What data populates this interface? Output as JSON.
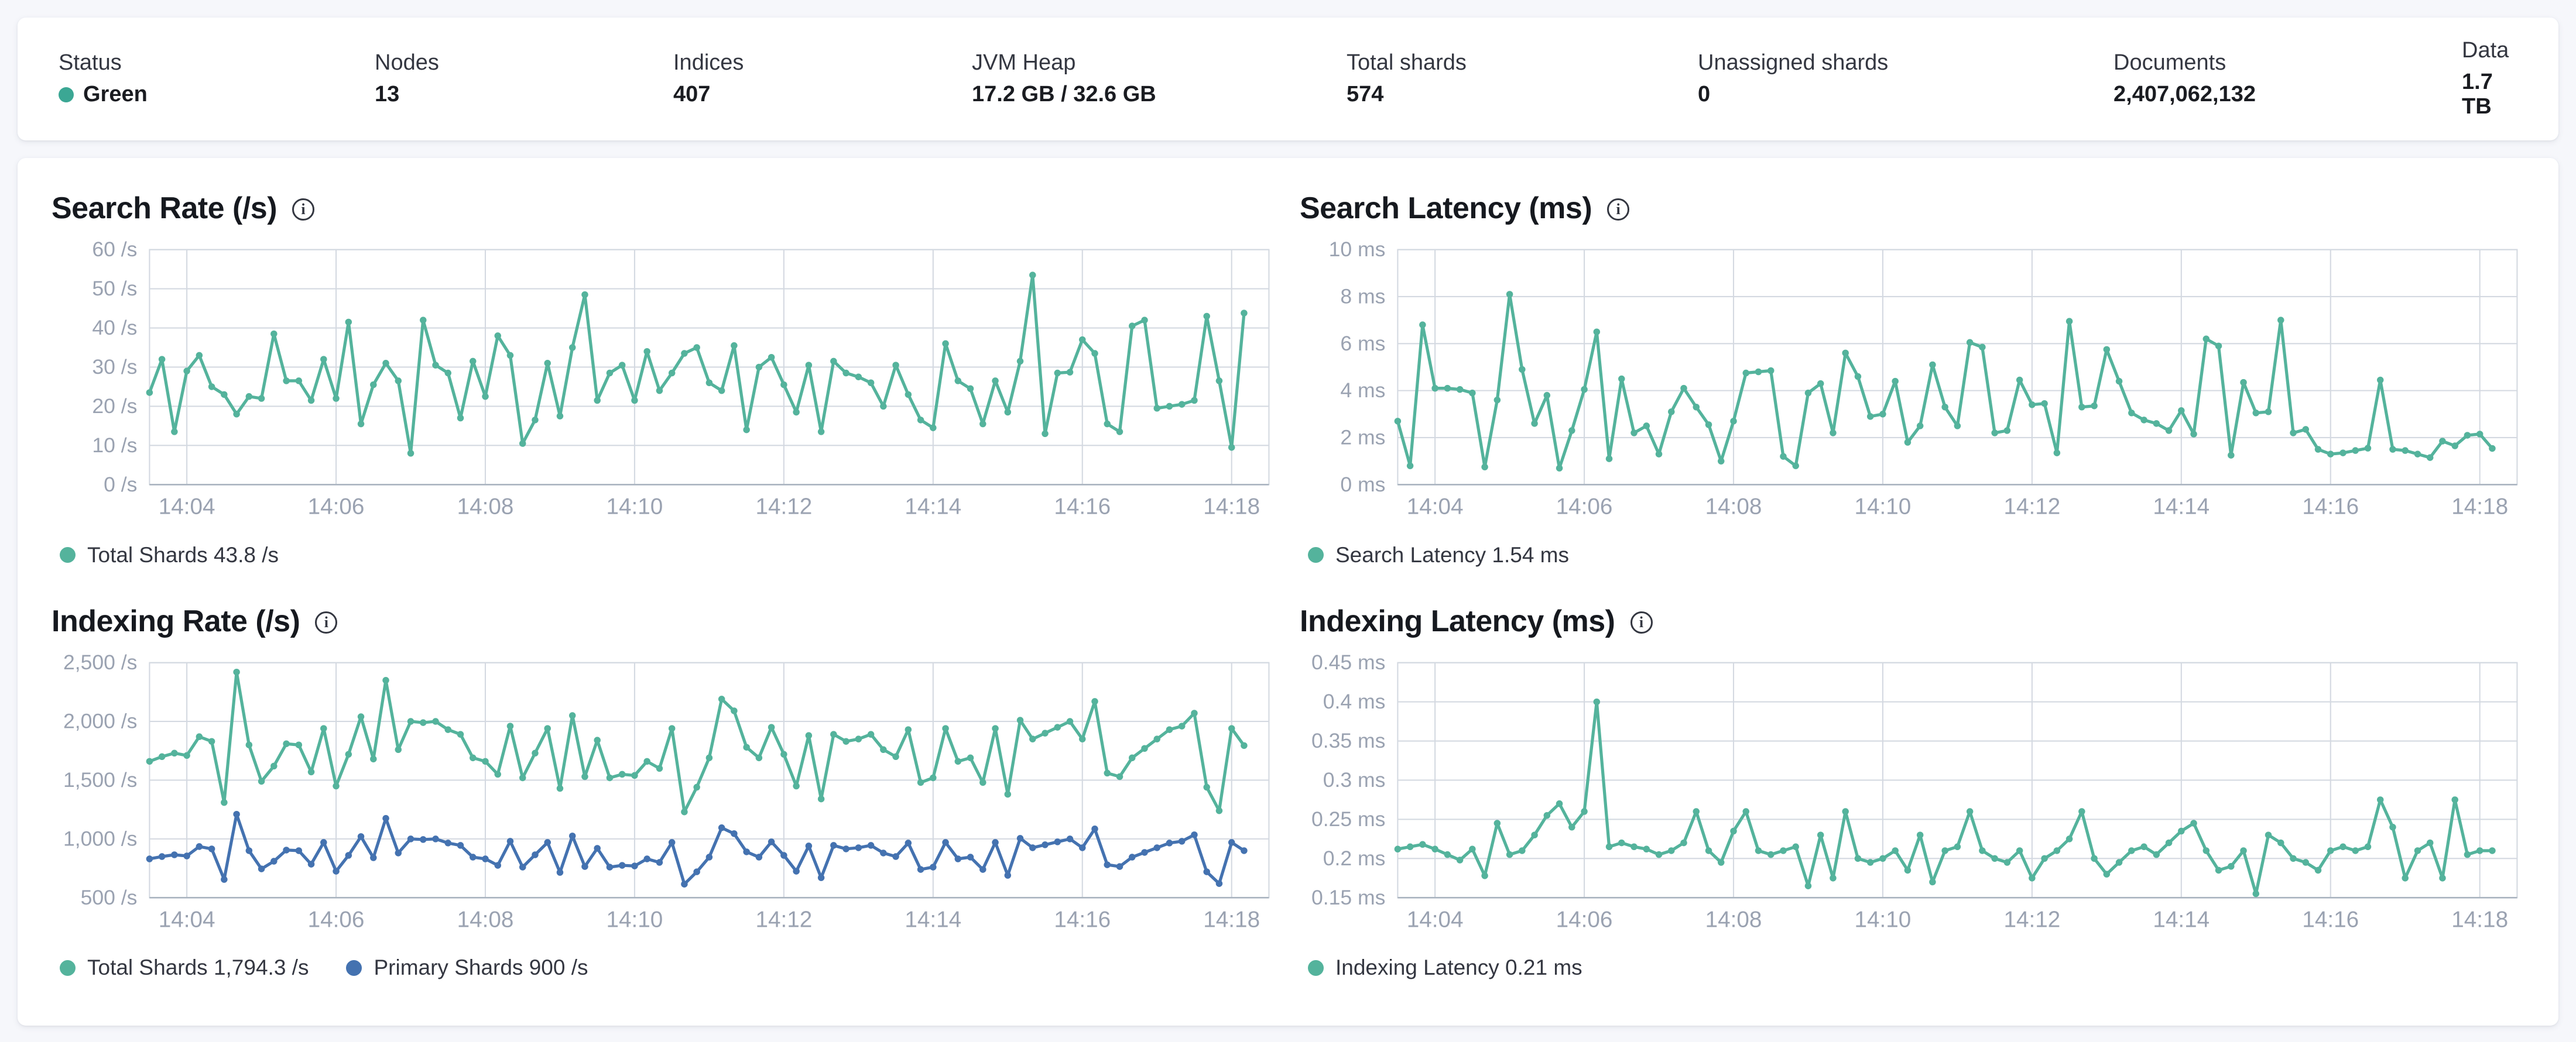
{
  "colors": {
    "teal": "#54b39c",
    "blue": "#4472b0",
    "status_green": "#3ba794",
    "grid": "#d4d9e1",
    "axis": "#aab4c0",
    "tick_text": "#9aa2b1"
  },
  "header": {
    "stats": [
      {
        "label": "Status",
        "value": "Green",
        "has_dot": true
      },
      {
        "label": "Nodes",
        "value": "13"
      },
      {
        "label": "Indices",
        "value": "407"
      },
      {
        "label": "JVM Heap",
        "value": "17.2 GB / 32.6 GB"
      },
      {
        "label": "Total shards",
        "value": "574"
      },
      {
        "label": "Unassigned shards",
        "value": "0"
      },
      {
        "label": "Documents",
        "value": "2,407,062,132"
      },
      {
        "label": "Data",
        "value": "1.7 TB"
      }
    ]
  },
  "info_icon_glyph": "i",
  "chart_data": [
    {
      "id": "search-rate",
      "type": "line",
      "title": "Search Rate (/s)",
      "x_start": "14:03:30",
      "interval_s": 10,
      "x_domain_s": 900,
      "xticks": [
        {
          "label": "14:04",
          "t": 30
        },
        {
          "label": "14:06",
          "t": 150
        },
        {
          "label": "14:08",
          "t": 270
        },
        {
          "label": "14:10",
          "t": 390
        },
        {
          "label": "14:12",
          "t": 510
        },
        {
          "label": "14:14",
          "t": 630
        },
        {
          "label": "14:16",
          "t": 750
        },
        {
          "label": "14:18",
          "t": 870
        }
      ],
      "ylim": [
        0,
        60
      ],
      "yticks": [
        {
          "v": 60,
          "label": "60 /s"
        },
        {
          "v": 50,
          "label": "50 /s"
        },
        {
          "v": 40,
          "label": "40 /s"
        },
        {
          "v": 30,
          "label": "30 /s"
        },
        {
          "v": 20,
          "label": "20 /s"
        },
        {
          "v": 10,
          "label": "10 /s"
        },
        {
          "v": 0,
          "label": "0 /s"
        }
      ],
      "series": [
        {
          "name": "Total Shards",
          "color": "#54b39c",
          "values": [
            23.5,
            32,
            13.5,
            29,
            33,
            25,
            23,
            18,
            22.5,
            22,
            38.5,
            26.5,
            26.5,
            21.5,
            32,
            22,
            41.5,
            15.5,
            25.5,
            31,
            26.5,
            8,
            42,
            30.5,
            28.5,
            17,
            31.5,
            22.5,
            38,
            33,
            10.5,
            16.5,
            31,
            17.5,
            35,
            48.5,
            21.5,
            28.5,
            30.5,
            21.5,
            34,
            24,
            28.5,
            33.5,
            35,
            26,
            24,
            35.5,
            14,
            30,
            32.5,
            25.5,
            18.5,
            30.5,
            13.5,
            31.5,
            28.5,
            27.5,
            26,
            20,
            30.5,
            23,
            16.5,
            14.5,
            36,
            26.5,
            24.5,
            15.5,
            26.5,
            18.5,
            31.5,
            53.5,
            13,
            28.5,
            28.7,
            37,
            33.5,
            15.5,
            13.5,
            40.5,
            42,
            19.5,
            20,
            20.5,
            21.5,
            43,
            26.5,
            9.5,
            43.8
          ]
        }
      ],
      "legend": [
        {
          "label": "Total Shards 43.8 /s",
          "color": "#54b39c"
        }
      ]
    },
    {
      "id": "search-latency",
      "type": "line",
      "title": "Search Latency (ms)",
      "x_start": "14:03:30",
      "interval_s": 10,
      "x_domain_s": 900,
      "xticks": [
        {
          "label": "14:04",
          "t": 30
        },
        {
          "label": "14:06",
          "t": 150
        },
        {
          "label": "14:08",
          "t": 270
        },
        {
          "label": "14:10",
          "t": 390
        },
        {
          "label": "14:12",
          "t": 510
        },
        {
          "label": "14:14",
          "t": 630
        },
        {
          "label": "14:16",
          "t": 750
        },
        {
          "label": "14:18",
          "t": 870
        }
      ],
      "ylim": [
        0,
        10
      ],
      "yticks": [
        {
          "v": 10,
          "label": "10 ms"
        },
        {
          "v": 8,
          "label": "8 ms"
        },
        {
          "v": 6,
          "label": "6 ms"
        },
        {
          "v": 4,
          "label": "4 ms"
        },
        {
          "v": 2,
          "label": "2 ms"
        },
        {
          "v": 0,
          "label": "0 ms"
        }
      ],
      "series": [
        {
          "name": "Search Latency",
          "color": "#54b39c",
          "values": [
            2.7,
            0.8,
            6.8,
            4.1,
            4.1,
            4.05,
            3.9,
            0.75,
            3.6,
            8.1,
            4.9,
            2.6,
            3.8,
            0.7,
            2.3,
            4.05,
            6.5,
            1.1,
            4.5,
            2.2,
            2.5,
            1.3,
            3.1,
            4.1,
            3.3,
            2.55,
            1.0,
            2.7,
            4.75,
            4.8,
            4.85,
            1.2,
            0.8,
            3.9,
            4.3,
            2.2,
            5.6,
            4.6,
            2.9,
            3.0,
            4.4,
            1.8,
            2.5,
            5.1,
            3.3,
            2.5,
            6.05,
            5.85,
            2.2,
            2.3,
            4.45,
            3.4,
            3.45,
            1.35,
            6.95,
            3.3,
            3.35,
            5.75,
            4.4,
            3.05,
            2.75,
            2.6,
            2.3,
            3.15,
            2.15,
            6.2,
            5.9,
            1.25,
            4.35,
            3.05,
            3.1,
            7.0,
            2.2,
            2.35,
            1.5,
            1.3,
            1.35,
            1.45,
            1.55,
            4.45,
            1.5,
            1.45,
            1.3,
            1.15,
            1.85,
            1.65,
            2.1,
            2.15,
            1.54
          ]
        }
      ],
      "legend": [
        {
          "label": "Search Latency 1.54 ms",
          "color": "#54b39c"
        }
      ]
    },
    {
      "id": "indexing-rate",
      "type": "line",
      "title": "Indexing Rate (/s)",
      "x_start": "14:03:30",
      "interval_s": 10,
      "x_domain_s": 900,
      "xticks": [
        {
          "label": "14:04",
          "t": 30
        },
        {
          "label": "14:06",
          "t": 150
        },
        {
          "label": "14:08",
          "t": 270
        },
        {
          "label": "14:10",
          "t": 390
        },
        {
          "label": "14:12",
          "t": 510
        },
        {
          "label": "14:14",
          "t": 630
        },
        {
          "label": "14:16",
          "t": 750
        },
        {
          "label": "14:18",
          "t": 870
        }
      ],
      "ylim": [
        500,
        2500
      ],
      "yticks": [
        {
          "v": 2500,
          "label": "2,500 /s"
        },
        {
          "v": 2000,
          "label": "2,000 /s"
        },
        {
          "v": 1500,
          "label": "1,500 /s"
        },
        {
          "v": 1000,
          "label": "1,000 /s"
        },
        {
          "v": 500,
          "label": "500 /s"
        }
      ],
      "series": [
        {
          "name": "Total Shards",
          "color": "#54b39c",
          "values": [
            1660,
            1700,
            1730,
            1710,
            1870,
            1830,
            1310,
            2420,
            1800,
            1490,
            1620,
            1810,
            1800,
            1570,
            1940,
            1450,
            1720,
            2040,
            1680,
            2350,
            1760,
            2000,
            1990,
            2000,
            1930,
            1890,
            1690,
            1660,
            1550,
            1960,
            1520,
            1730,
            1940,
            1430,
            2050,
            1530,
            1840,
            1520,
            1550,
            1540,
            1660,
            1600,
            1940,
            1230,
            1440,
            1690,
            2190,
            2090,
            1780,
            1690,
            1950,
            1720,
            1450,
            1880,
            1340,
            1890,
            1830,
            1850,
            1890,
            1760,
            1700,
            1930,
            1480,
            1520,
            1940,
            1660,
            1690,
            1480,
            1940,
            1380,
            2010,
            1850,
            1900,
            1950,
            2000,
            1850,
            2170,
            1560,
            1530,
            1690,
            1770,
            1850,
            1930,
            1960,
            2070,
            1440,
            1240,
            1940,
            1794.3
          ]
        },
        {
          "name": "Primary Shards",
          "color": "#4472b0",
          "values": [
            830,
            850,
            865,
            855,
            935,
            915,
            655,
            1210,
            900,
            745,
            810,
            905,
            900,
            785,
            970,
            725,
            860,
            1020,
            840,
            1175,
            880,
            1000,
            995,
            1000,
            965,
            945,
            845,
            830,
            775,
            980,
            760,
            865,
            970,
            715,
            1025,
            765,
            920,
            760,
            775,
            770,
            830,
            800,
            970,
            615,
            720,
            845,
            1095,
            1045,
            890,
            845,
            975,
            860,
            725,
            940,
            670,
            945,
            915,
            925,
            945,
            880,
            850,
            965,
            740,
            760,
            970,
            830,
            845,
            740,
            970,
            690,
            1005,
            925,
            950,
            975,
            1000,
            925,
            1085,
            780,
            765,
            845,
            885,
            925,
            965,
            980,
            1035,
            720,
            620,
            970,
            900
          ]
        }
      ],
      "legend": [
        {
          "label": "Total Shards 1,794.3 /s",
          "color": "#54b39c"
        },
        {
          "label": "Primary Shards 900 /s",
          "color": "#4472b0"
        }
      ]
    },
    {
      "id": "indexing-latency",
      "type": "line",
      "title": "Indexing Latency (ms)",
      "x_start": "14:03:30",
      "interval_s": 10,
      "x_domain_s": 900,
      "xticks": [
        {
          "label": "14:04",
          "t": 30
        },
        {
          "label": "14:06",
          "t": 150
        },
        {
          "label": "14:08",
          "t": 270
        },
        {
          "label": "14:10",
          "t": 390
        },
        {
          "label": "14:12",
          "t": 510
        },
        {
          "label": "14:14",
          "t": 630
        },
        {
          "label": "14:16",
          "t": 750
        },
        {
          "label": "14:18",
          "t": 870
        }
      ],
      "ylim": [
        0.15,
        0.45
      ],
      "yticks": [
        {
          "v": 0.45,
          "label": "0.45 ms"
        },
        {
          "v": 0.4,
          "label": "0.4 ms"
        },
        {
          "v": 0.35,
          "label": "0.35 ms"
        },
        {
          "v": 0.3,
          "label": "0.3 ms"
        },
        {
          "v": 0.25,
          "label": "0.25 ms"
        },
        {
          "v": 0.2,
          "label": "0.2 ms"
        },
        {
          "v": 0.15,
          "label": "0.15 ms"
        }
      ],
      "series": [
        {
          "name": "Indexing Latency",
          "color": "#54b39c",
          "values": [
            0.212,
            0.215,
            0.218,
            0.212,
            0.205,
            0.198,
            0.212,
            0.178,
            0.245,
            0.205,
            0.21,
            0.23,
            0.255,
            0.27,
            0.24,
            0.26,
            0.4,
            0.215,
            0.22,
            0.215,
            0.212,
            0.205,
            0.21,
            0.22,
            0.26,
            0.21,
            0.195,
            0.235,
            0.26,
            0.21,
            0.205,
            0.21,
            0.215,
            0.165,
            0.23,
            0.175,
            0.26,
            0.2,
            0.195,
            0.2,
            0.21,
            0.185,
            0.23,
            0.17,
            0.21,
            0.215,
            0.26,
            0.21,
            0.2,
            0.195,
            0.21,
            0.175,
            0.2,
            0.21,
            0.225,
            0.26,
            0.2,
            0.18,
            0.195,
            0.21,
            0.215,
            0.205,
            0.22,
            0.235,
            0.245,
            0.21,
            0.185,
            0.19,
            0.21,
            0.155,
            0.23,
            0.22,
            0.2,
            0.195,
            0.185,
            0.21,
            0.215,
            0.21,
            0.215,
            0.275,
            0.24,
            0.175,
            0.21,
            0.22,
            0.175,
            0.275,
            0.205,
            0.21,
            0.21
          ]
        }
      ],
      "legend": [
        {
          "label": "Indexing Latency 0.21 ms",
          "color": "#54b39c"
        }
      ]
    }
  ]
}
